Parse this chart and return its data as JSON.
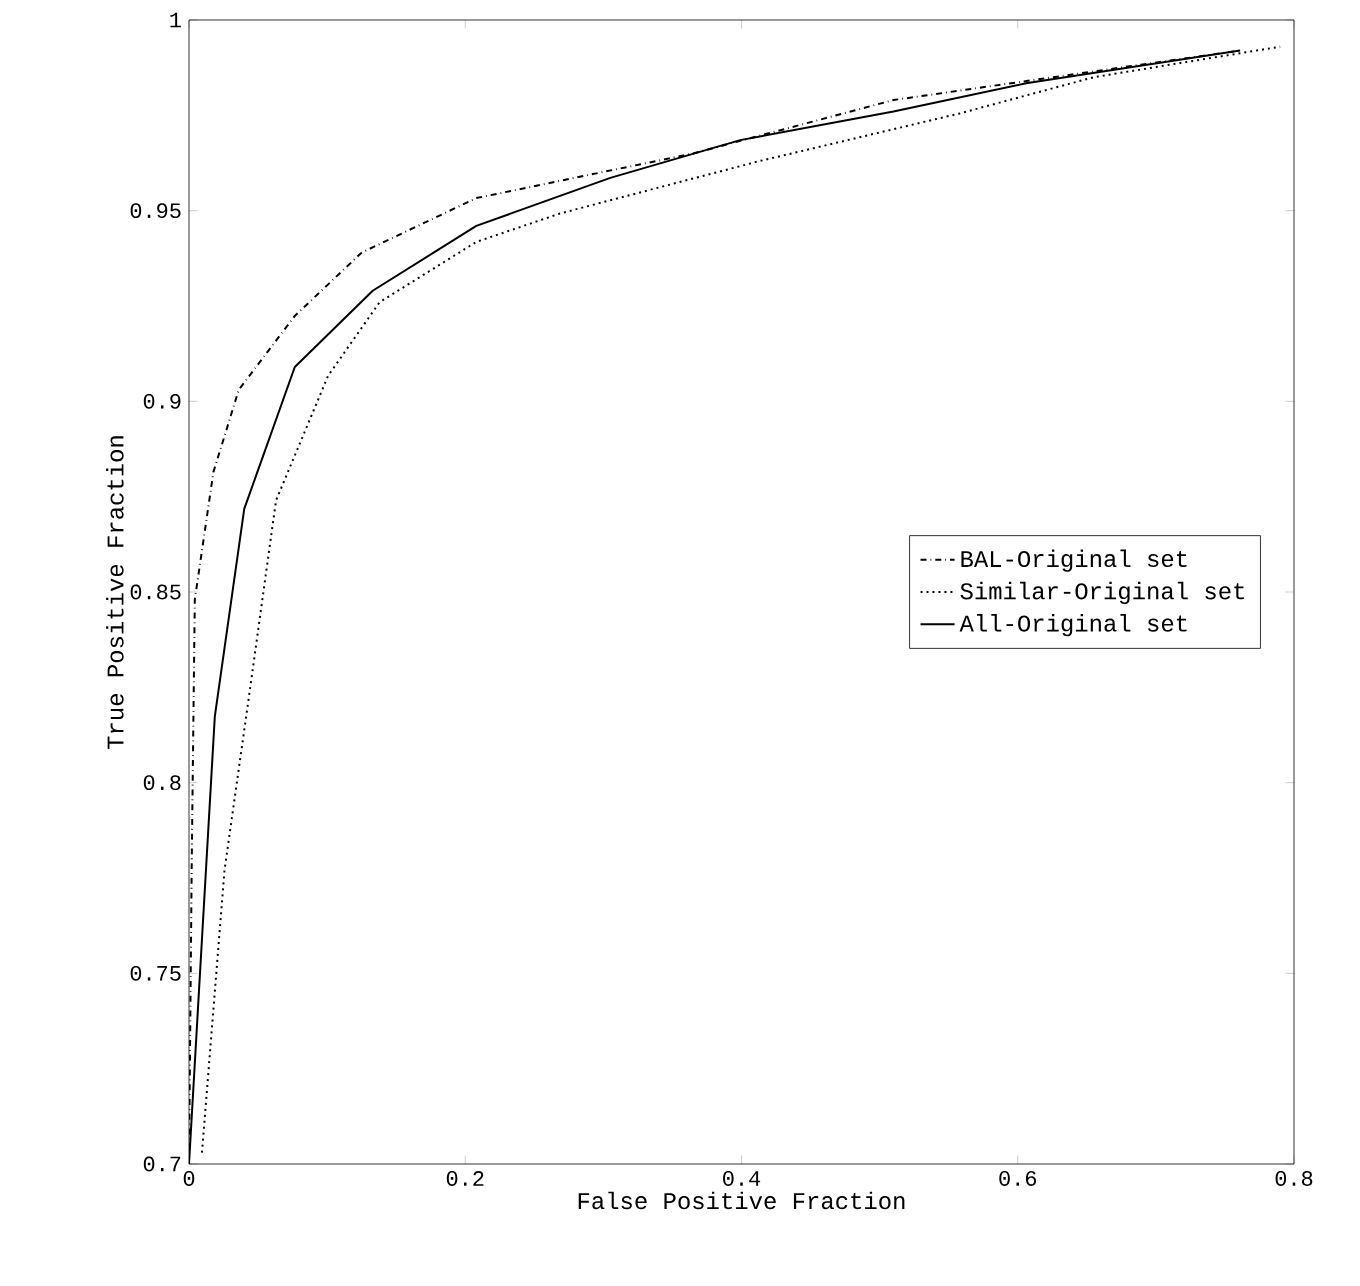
{
  "chart_data": {
    "type": "line",
    "xlabel": "False Positive Fraction",
    "ylabel": "True Positive Fraction",
    "xlim": [
      0,
      0.8
    ],
    "ylim": [
      0.7,
      1
    ],
    "xticks": [
      0,
      0.2,
      0.4,
      0.6,
      0.8
    ],
    "yticks": [
      0.7,
      0.75,
      0.8,
      0.85,
      0.9,
      0.95,
      1
    ],
    "grid": false,
    "legend": "right",
    "marker": "none",
    "series": [
      {
        "name": "BAL-Original set",
        "color": "#000000",
        "line_style": "dashdot",
        "x": [
          0,
          0.002,
          0.0042,
          0.0177,
          0.036,
          0.0766,
          0.125,
          0.208,
          0.365,
          0.51,
          0.761
        ],
        "values": [
          0.7,
          0.78,
          0.848,
          0.8815,
          0.903,
          0.9224,
          0.939,
          0.9533,
          0.965,
          0.979,
          0.992
        ]
      },
      {
        "name": "Similar-Original set",
        "color": "#000000",
        "line_style": "dotted",
        "x": [
          0.0094,
          0.0257,
          0.0445,
          0.063,
          0.1007,
          0.138,
          0.208,
          0.269,
          0.413,
          0.558,
          0.655,
          0.79
        ],
        "values": [
          0.703,
          0.777,
          0.8254,
          0.874,
          0.9067,
          0.926,
          0.9418,
          0.9493,
          0.963,
          0.9755,
          0.985,
          0.993
        ]
      },
      {
        "name": "All-Original set",
        "color": "#000000",
        "line_style": "solid",
        "x": [
          0,
          0.0187,
          0.04,
          0.0766,
          0.133,
          0.208,
          0.305,
          0.399,
          0.51,
          0.606,
          0.761
        ],
        "values": [
          0.7,
          0.8174,
          0.8718,
          0.909,
          0.929,
          0.946,
          0.9586,
          0.9685,
          0.976,
          0.9834,
          0.992
        ]
      }
    ]
  }
}
